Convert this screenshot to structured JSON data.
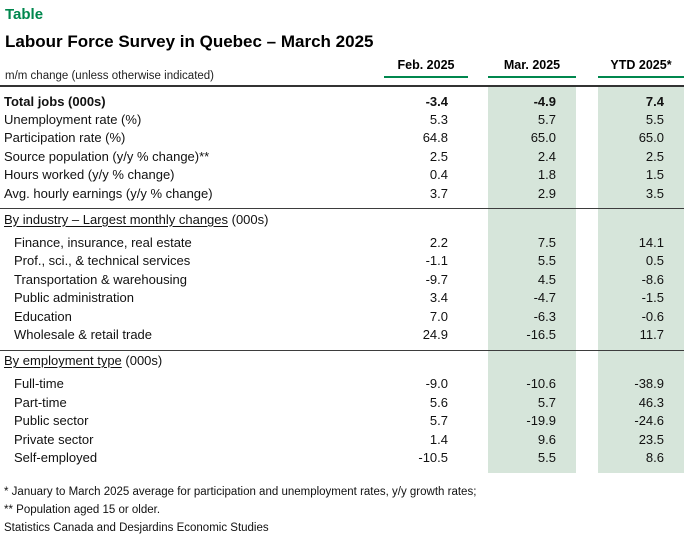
{
  "chart_data": {
    "type": "table",
    "kicker": "Table",
    "title": "Labour Force Survey in Quebec – March 2025",
    "row_header_note": "m/m change (unless otherwise indicated)",
    "columns": [
      "Feb. 2025",
      "Mar. 2025",
      "YTD 2025*"
    ],
    "sections": [
      {
        "rows": [
          {
            "label": "Total jobs (000s)",
            "bold": true,
            "values": [
              "-3.4",
              "-4.9",
              "7.4"
            ]
          },
          {
            "label": "Unemployment rate (%)",
            "values": [
              "5.3",
              "5.7",
              "5.5"
            ]
          },
          {
            "label": "Participation rate (%)",
            "values": [
              "64.8",
              "65.0",
              "65.0"
            ]
          },
          {
            "label": "Source population (y/y % change)**",
            "values": [
              "2.5",
              "2.4",
              "2.5"
            ]
          },
          {
            "label": "Hours worked (y/y % change)",
            "values": [
              "0.4",
              "1.8",
              "1.5"
            ]
          },
          {
            "label": "Avg. hourly earnings (y/y % change)",
            "values": [
              "3.7",
              "2.9",
              "3.5"
            ]
          }
        ]
      },
      {
        "heading": "By industry – Largest monthly changes",
        "heading_suffix": " (000s)",
        "rows": [
          {
            "label": "Finance, insurance, real estate",
            "values": [
              "2.2",
              "7.5",
              "14.1"
            ]
          },
          {
            "label": "Prof., sci., & technical services",
            "values": [
              "-1.1",
              "5.5",
              "0.5"
            ]
          },
          {
            "label": "Transportation & warehousing",
            "values": [
              "-9.7",
              "4.5",
              "-8.6"
            ]
          },
          {
            "label": "Public administration",
            "values": [
              "3.4",
              "-4.7",
              "-1.5"
            ]
          },
          {
            "label": "Education",
            "values": [
              "7.0",
              "-6.3",
              "-0.6"
            ]
          },
          {
            "label": "Wholesale & retail trade",
            "values": [
              "24.9",
              "-16.5",
              "11.7"
            ]
          }
        ]
      },
      {
        "heading": "By employment type",
        "heading_suffix": " (000s)",
        "rows": [
          {
            "label": "Full-time",
            "values": [
              "-9.0",
              "-10.6",
              "-38.9"
            ]
          },
          {
            "label": "Part-time",
            "values": [
              "5.6",
              "5.7",
              "46.3"
            ]
          },
          {
            "label": "Public sector",
            "values": [
              "5.7",
              "-19.9",
              "-24.6"
            ]
          },
          {
            "label": "Private sector",
            "values": [
              "1.4",
              "9.6",
              "23.5"
            ]
          },
          {
            "label": "Self-employed",
            "values": [
              "-10.5",
              "5.5",
              "8.6"
            ]
          }
        ]
      }
    ],
    "footnotes": [
      "* January to March 2025 average for participation and unemployment rates, y/y growth rates;",
      "** Population aged 15 or older.",
      "Statistics Canada and Desjardins Economic Studies"
    ],
    "colors": {
      "accent_green": "#00874e",
      "band_green": "#d6e5da",
      "rule_dark": "#3d3d3d"
    }
  }
}
